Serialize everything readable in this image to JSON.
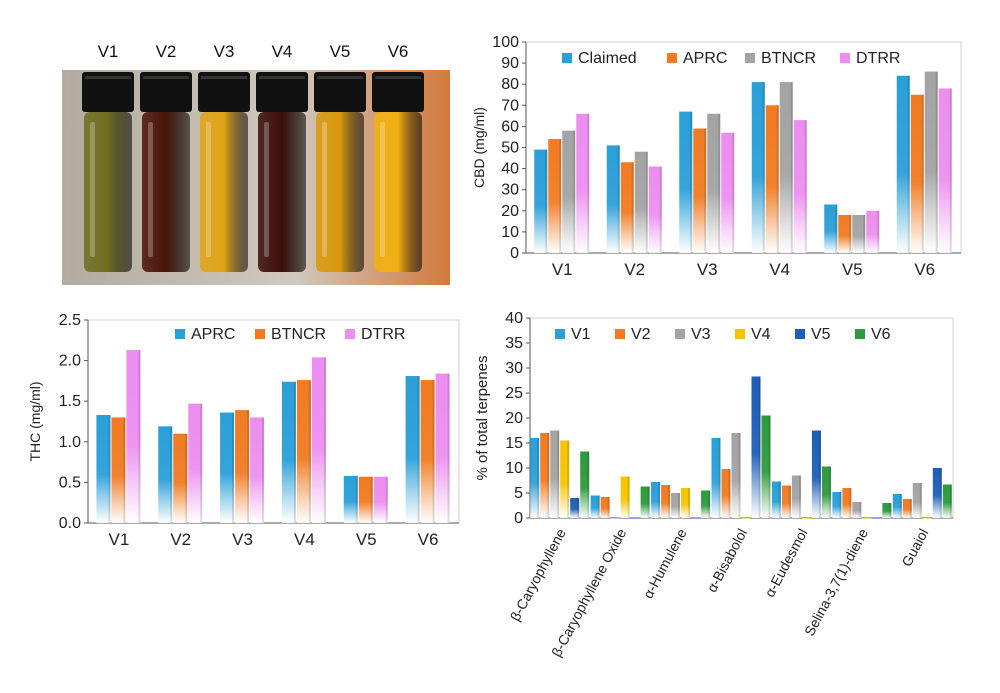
{
  "photo": {
    "labels": [
      "V1",
      "V2",
      "V3",
      "V4",
      "V5",
      "V6"
    ],
    "vial_colors": [
      "#6f6e1e",
      "#4a1408",
      "#e0a416",
      "#3b0d08",
      "#d9990d",
      "#f2b012"
    ]
  },
  "chart_data": [
    {
      "id": "cbd",
      "type": "bar",
      "title": "",
      "ylabel": "CBD  (mg/ml)",
      "xlabel": "",
      "ylim": [
        0,
        100
      ],
      "yticks": [
        0,
        10,
        20,
        30,
        40,
        50,
        60,
        70,
        80,
        90,
        100
      ],
      "grid": false,
      "legend_position": "top",
      "categories": [
        "V1",
        "V2",
        "V3",
        "V4",
        "V5",
        "V6"
      ],
      "series": [
        {
          "name": "Claimed",
          "color": "#2a9fd8",
          "values": [
            49,
            51,
            67,
            81,
            23,
            84
          ]
        },
        {
          "name": "APRC",
          "color": "#f07b22",
          "values": [
            54,
            43,
            59,
            70,
            18,
            75
          ]
        },
        {
          "name": "BTNCR",
          "color": "#a3a3a3",
          "values": [
            58,
            48,
            66,
            81,
            18,
            86
          ]
        },
        {
          "name": "DTRR",
          "color": "#ec8ef0",
          "values": [
            66,
            41,
            57,
            63,
            20,
            78
          ]
        }
      ]
    },
    {
      "id": "thc",
      "type": "bar",
      "title": "",
      "ylabel": "THC  (mg/ml)",
      "xlabel": "",
      "ylim": [
        0,
        2.5
      ],
      "yticks": [
        "0.0",
        "0.5",
        "1.0",
        "1.5",
        "2.0",
        "2.5"
      ],
      "grid": false,
      "legend_position": "top",
      "categories": [
        "V1",
        "V2",
        "V3",
        "V4",
        "V5",
        "V6"
      ],
      "series": [
        {
          "name": "APRC",
          "color": "#2a9fd8",
          "values": [
            1.33,
            1.19,
            1.36,
            1.74,
            0.58,
            1.81
          ]
        },
        {
          "name": "BTNCR",
          "color": "#f07b22",
          "values": [
            1.3,
            1.1,
            1.39,
            1.76,
            0.57,
            1.76
          ]
        },
        {
          "name": "DTRR",
          "color": "#ec8ef0",
          "values": [
            2.13,
            1.47,
            1.3,
            2.04,
            0.57,
            1.84
          ]
        }
      ]
    },
    {
      "id": "terpenes",
      "type": "bar",
      "title": "",
      "ylabel": "% of total terpenes",
      "xlabel": "",
      "ylim": [
        0,
        40
      ],
      "yticks": [
        0,
        5,
        10,
        15,
        20,
        25,
        30,
        35,
        40
      ],
      "grid": false,
      "legend_position": "top",
      "categories": [
        "β-Caryophyllene",
        "β-Caryophyllene  Oxide",
        "α-Humulene",
        "α-Bisabolol",
        "α-Eudesmol",
        "Selina-3,7(1)-diene",
        "Guaiol"
      ],
      "series": [
        {
          "name": "V1",
          "color": "#2a9fd8",
          "values": [
            16,
            4.5,
            7.2,
            16,
            7.3,
            5.2,
            4.8
          ]
        },
        {
          "name": "V2",
          "color": "#f07b22",
          "values": [
            17,
            4.2,
            6.6,
            9.8,
            6.5,
            6,
            3.8
          ]
        },
        {
          "name": "V3",
          "color": "#a3a3a3",
          "values": [
            17.5,
            0,
            5,
            17,
            8.5,
            3.2,
            7
          ]
        },
        {
          "name": "V4",
          "color": "#f5c400",
          "values": [
            15.5,
            8.3,
            6,
            0,
            0,
            0,
            0
          ]
        },
        {
          "name": "V5",
          "color": "#1f5fb8",
          "values": [
            4,
            0,
            0,
            28.3,
            17.5,
            0,
            10
          ]
        },
        {
          "name": "V6",
          "color": "#2e9a3e",
          "values": [
            13.3,
            6.3,
            5.5,
            20.5,
            10.3,
            3,
            6.7
          ]
        }
      ]
    }
  ]
}
